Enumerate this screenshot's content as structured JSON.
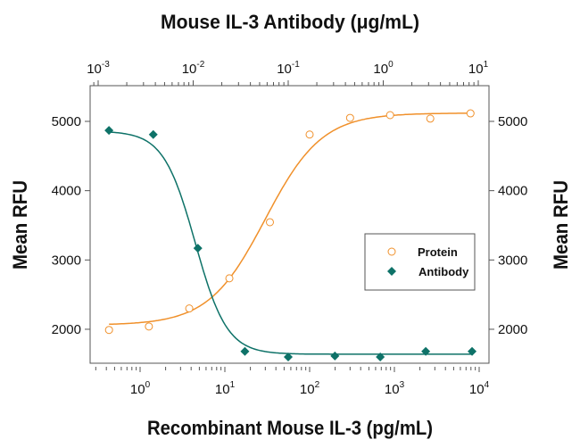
{
  "chart_data": {
    "type": "scatter",
    "title": "Mouse IL-3 Antibody (μg/mL)",
    "title_base": "Mouse IL-3 Antibody (",
    "title_mu": "μ",
    "title_rest": "g/mL)",
    "xlabel": "Recombinant Mouse IL-3 (pg/mL)",
    "ylabel_left": "Mean RFU",
    "ylabel_right": "Mean RFU",
    "x_bottom": {
      "scale": "log",
      "range": [
        0.3,
        10000
      ],
      "ticks": [
        {
          "base": "10",
          "exp": "0",
          "value": 1
        },
        {
          "base": "10",
          "exp": "1",
          "value": 10
        },
        {
          "base": "10",
          "exp": "2",
          "value": 100
        },
        {
          "base": "10",
          "exp": "3",
          "value": 1000
        },
        {
          "base": "10",
          "exp": "4",
          "value": 10000
        }
      ]
    },
    "x_top": {
      "scale": "log",
      "range": [
        0.0009,
        10
      ],
      "ticks": [
        {
          "base": "10",
          "exp": "-3",
          "value": 0.001
        },
        {
          "base": "10",
          "exp": "-2",
          "value": 0.01
        },
        {
          "base": "10",
          "exp": "-1",
          "value": 0.1
        },
        {
          "base": "10",
          "exp": "0",
          "value": 1
        },
        {
          "base": "10",
          "exp": "1",
          "value": 10
        }
      ]
    },
    "y": {
      "range": [
        1510,
        5515
      ],
      "ticks": [
        2000,
        3000,
        4000,
        5000
      ],
      "tick_labels": [
        "2000",
        "3000",
        "4000",
        "5000"
      ]
    },
    "grid": false,
    "legend_position": "center-right",
    "series": [
      {
        "name": "Protein",
        "axis": "bottom",
        "marker": "open-circle",
        "color": "#F0902A",
        "x": [
          0.43,
          1.27,
          3.8,
          11.3,
          34,
          100,
          300,
          890,
          2650,
          7900
        ],
        "y": [
          1990,
          2040,
          2300,
          2735,
          3545,
          4810,
          5050,
          5090,
          5040,
          5115
        ],
        "fit": {
          "bottom": 2060,
          "top": 5120,
          "ec50": 30,
          "hill": 1.3
        }
      },
      {
        "name": "Antibody",
        "axis": "top",
        "marker": "filled-diamond",
        "color": "#0E7268",
        "x": [
          0.0013,
          0.0038,
          0.0112,
          0.035,
          0.1,
          0.31,
          0.93,
          2.8,
          8.6
        ],
        "y": [
          4870,
          4810,
          3170,
          1680,
          1600,
          1615,
          1600,
          1680,
          1680
        ],
        "fit": {
          "bottom": 1640,
          "top": 4860,
          "ec50": 0.0105,
          "hill": -2.6
        }
      }
    ]
  }
}
